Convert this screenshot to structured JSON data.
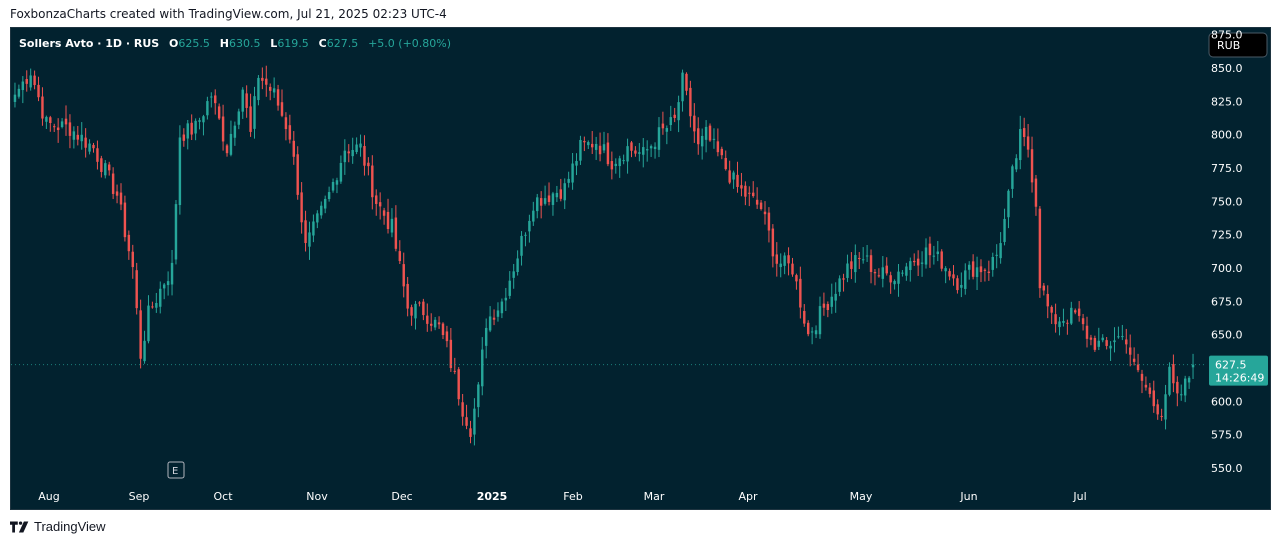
{
  "header": {
    "caption": "FoxbonzaCharts created with TradingView.com, Jul 21, 2025 02:23 UTC-4"
  },
  "legend": {
    "symbol": "Sollers Avto · 1D · RUS",
    "o_label": "O",
    "o_value": "625.5",
    "h_label": "H",
    "h_value": "630.5",
    "l_label": "L",
    "l_value": "619.5",
    "c_label": "C",
    "c_value": "627.5",
    "change": "+5.0 (+0.80%)"
  },
  "currency_button": "RUB",
  "price_tag": {
    "price": "627.5",
    "countdown": "14:26:49"
  },
  "event_marker": "E",
  "footer": {
    "brand": "TradingView"
  },
  "colors": {
    "up": "#26a69a",
    "down": "#ef5350",
    "background": "#02222f",
    "axis_text": "#ffffff"
  },
  "chart_data": {
    "type": "candlestick",
    "title": "Sollers Avto · 1D · RUS",
    "ylim": [
      538,
      880
    ],
    "yticks": [
      875,
      850,
      825,
      800,
      775,
      750,
      725,
      700,
      675,
      650,
      600,
      575,
      550
    ],
    "ytick_labels": [
      "875.0",
      "850.0",
      "825.0",
      "800.0",
      "775.0",
      "750.0",
      "725.0",
      "700.0",
      "675.0",
      "650.0",
      "600.0",
      "575.0",
      "550.0"
    ],
    "xlabels": [
      "Aug",
      "Sep",
      "Oct",
      "Nov",
      "Dec",
      "2025",
      "Feb",
      "Mar",
      "Apr",
      "May",
      "Jun",
      "Jul"
    ],
    "last_price": 627.5,
    "anchors": [
      [
        0,
        830
      ],
      [
        4,
        848
      ],
      [
        8,
        808
      ],
      [
        14,
        805
      ],
      [
        20,
        790
      ],
      [
        26,
        755
      ],
      [
        30,
        700
      ],
      [
        32,
        635
      ],
      [
        34,
        665
      ],
      [
        38,
        690
      ],
      [
        40,
        700
      ],
      [
        42,
        800
      ],
      [
        46,
        805
      ],
      [
        50,
        830
      ],
      [
        54,
        790
      ],
      [
        58,
        835
      ],
      [
        60,
        800
      ],
      [
        62,
        845
      ],
      [
        66,
        830
      ],
      [
        70,
        800
      ],
      [
        72,
        760
      ],
      [
        74,
        715
      ],
      [
        77,
        735
      ],
      [
        80,
        755
      ],
      [
        84,
        790
      ],
      [
        88,
        790
      ],
      [
        92,
        750
      ],
      [
        96,
        730
      ],
      [
        100,
        670
      ],
      [
        104,
        668
      ],
      [
        108,
        655
      ],
      [
        110,
        640
      ],
      [
        114,
        595
      ],
      [
        116,
        580
      ],
      [
        118,
        608
      ],
      [
        120,
        660
      ],
      [
        124,
        675
      ],
      [
        128,
        710
      ],
      [
        132,
        750
      ],
      [
        136,
        755
      ],
      [
        140,
        760
      ],
      [
        144,
        790
      ],
      [
        148,
        795
      ],
      [
        152,
        780
      ],
      [
        156,
        790
      ],
      [
        160,
        785
      ],
      [
        164,
        800
      ],
      [
        168,
        810
      ],
      [
        170,
        840
      ],
      [
        174,
        790
      ],
      [
        176,
        800
      ],
      [
        180,
        780
      ],
      [
        184,
        760
      ],
      [
        186,
        755
      ],
      [
        190,
        745
      ],
      [
        194,
        705
      ],
      [
        198,
        700
      ],
      [
        200,
        675
      ],
      [
        202,
        650
      ],
      [
        206,
        670
      ],
      [
        208,
        680
      ],
      [
        212,
        700
      ],
      [
        216,
        708
      ],
      [
        220,
        695
      ],
      [
        224,
        695
      ],
      [
        228,
        705
      ],
      [
        232,
        712
      ],
      [
        236,
        705
      ],
      [
        240,
        690
      ],
      [
        244,
        700
      ],
      [
        248,
        700
      ],
      [
        250,
        710
      ],
      [
        252,
        735
      ],
      [
        254,
        770
      ],
      [
        256,
        798
      ],
      [
        258,
        790
      ],
      [
        260,
        750
      ],
      [
        261,
        690
      ],
      [
        264,
        660
      ],
      [
        266,
        662
      ],
      [
        270,
        665
      ],
      [
        274,
        645
      ],
      [
        278,
        640
      ],
      [
        280,
        648
      ],
      [
        283,
        648
      ],
      [
        285,
        625
      ],
      [
        288,
        610
      ],
      [
        290,
        598
      ],
      [
        292,
        594
      ],
      [
        294,
        620
      ],
      [
        296,
        600
      ],
      [
        298,
        612
      ],
      [
        300,
        625
      ]
    ]
  }
}
